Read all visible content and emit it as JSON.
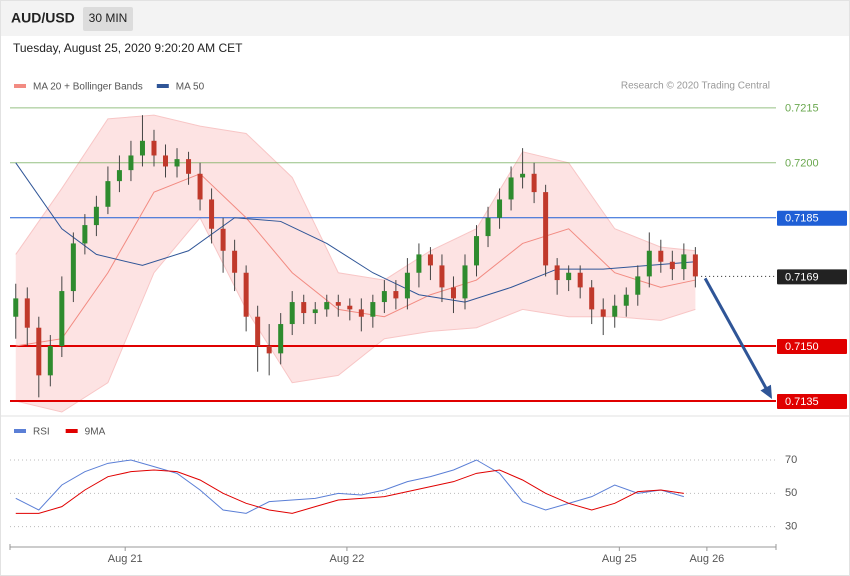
{
  "header": {
    "symbol": "AUD/USD",
    "timeframe": "30 MIN",
    "timestamp": "Tuesday, August 25, 2020 9:20:20 AM CET"
  },
  "chart_data": [
    {
      "type": "candlestick",
      "source": "Research © 2020 Trading Central",
      "up_color": "#2e8b2e",
      "down_color": "#c0392b",
      "xlim": [
        -0.5,
        66
      ],
      "ylim": [
        0.7132,
        0.72185
      ],
      "open": [
        0.7158,
        0.7163,
        0.7155,
        0.7142,
        0.715,
        0.7165,
        0.7178,
        0.7183,
        0.7188,
        0.7195,
        0.7198,
        0.7202,
        0.7206,
        0.7202,
        0.7199,
        0.7201,
        0.7197,
        0.719,
        0.7182,
        0.7176,
        0.717,
        0.7158,
        0.715,
        0.7148,
        0.7156,
        0.7162,
        0.7159,
        0.716,
        0.7162,
        0.7161,
        0.716,
        0.7158,
        0.7162,
        0.7165,
        0.7163,
        0.717,
        0.7175,
        0.7172,
        0.7166,
        0.7163,
        0.7172,
        0.718,
        0.7185,
        0.719,
        0.7196,
        0.7197,
        0.7192,
        0.7172,
        0.7168,
        0.717,
        0.7166,
        0.716,
        0.7158,
        0.7161,
        0.7164,
        0.7169,
        0.7176,
        0.7173,
        0.7171,
        0.7175
      ],
      "high": [
        0.7167,
        0.7166,
        0.7158,
        0.7153,
        0.7169,
        0.7181,
        0.7186,
        0.7191,
        0.7199,
        0.7202,
        0.7206,
        0.7213,
        0.7209,
        0.7205,
        0.7204,
        0.7203,
        0.72,
        0.7193,
        0.7185,
        0.7179,
        0.7172,
        0.7161,
        0.7156,
        0.7159,
        0.7165,
        0.7164,
        0.7162,
        0.7164,
        0.7164,
        0.7163,
        0.7163,
        0.7164,
        0.7168,
        0.7168,
        0.7174,
        0.7178,
        0.7177,
        0.7175,
        0.7169,
        0.7175,
        0.7183,
        0.7188,
        0.7193,
        0.7199,
        0.7204,
        0.72,
        0.7194,
        0.7174,
        0.7172,
        0.7172,
        0.7168,
        0.7163,
        0.7164,
        0.7166,
        0.7172,
        0.7181,
        0.7179,
        0.7176,
        0.7178,
        0.7177
      ],
      "low": [
        0.7152,
        0.715,
        0.7136,
        0.7139,
        0.7147,
        0.7162,
        0.7175,
        0.718,
        0.7186,
        0.7192,
        0.7195,
        0.7199,
        0.7199,
        0.7196,
        0.7196,
        0.7194,
        0.7187,
        0.7178,
        0.717,
        0.7165,
        0.7154,
        0.7143,
        0.7142,
        0.7145,
        0.7153,
        0.7156,
        0.7156,
        0.7158,
        0.7158,
        0.7157,
        0.7154,
        0.7155,
        0.7159,
        0.716,
        0.716,
        0.7166,
        0.7168,
        0.7162,
        0.7159,
        0.716,
        0.7169,
        0.7177,
        0.7182,
        0.7187,
        0.7193,
        0.7189,
        0.7169,
        0.7164,
        0.7165,
        0.7163,
        0.7156,
        0.7153,
        0.7155,
        0.7158,
        0.7161,
        0.7166,
        0.717,
        0.7168,
        0.7168,
        0.7166
      ],
      "close": [
        0.7163,
        0.7155,
        0.7142,
        0.715,
        0.7165,
        0.7178,
        0.7183,
        0.7188,
        0.7195,
        0.7198,
        0.7202,
        0.7206,
        0.7202,
        0.7199,
        0.7201,
        0.7197,
        0.719,
        0.7182,
        0.7176,
        0.717,
        0.7158,
        0.715,
        0.7148,
        0.7156,
        0.7162,
        0.7159,
        0.716,
        0.7162,
        0.7161,
        0.716,
        0.7158,
        0.7162,
        0.7165,
        0.7163,
        0.717,
        0.7175,
        0.7172,
        0.7166,
        0.7163,
        0.7172,
        0.718,
        0.7185,
        0.719,
        0.7196,
        0.7197,
        0.7192,
        0.7172,
        0.7168,
        0.717,
        0.7166,
        0.716,
        0.7158,
        0.7161,
        0.7164,
        0.7169,
        0.7176,
        0.7173,
        0.7171,
        0.7175,
        0.7169
      ],
      "bands": {
        "x": [
          0,
          4,
          8,
          12,
          16,
          20,
          24,
          28,
          32,
          36,
          40,
          44,
          48,
          52,
          56,
          59
        ],
        "upper": [
          0.7175,
          0.7193,
          0.7212,
          0.7213,
          0.721,
          0.7208,
          0.7196,
          0.717,
          0.7168,
          0.7176,
          0.7182,
          0.7203,
          0.72,
          0.7182,
          0.7177,
          0.7176
        ],
        "lower": [
          0.7135,
          0.7132,
          0.714,
          0.717,
          0.7185,
          0.716,
          0.714,
          0.7142,
          0.7152,
          0.7154,
          0.7155,
          0.716,
          0.7158,
          0.7158,
          0.7157,
          0.716
        ],
        "fill": "#fde3e3"
      },
      "series": [
        {
          "name": "MA 20 + Bollinger Bands",
          "color": "#f28b82",
          "x": [
            0,
            4,
            8,
            12,
            16,
            20,
            24,
            28,
            32,
            36,
            40,
            44,
            48,
            52,
            56,
            59
          ],
          "values": [
            0.715,
            0.7152,
            0.717,
            0.7192,
            0.7197,
            0.7185,
            0.717,
            0.716,
            0.7158,
            0.7164,
            0.7168,
            0.7178,
            0.7182,
            0.717,
            0.7166,
            0.7168
          ]
        },
        {
          "name": "MA 50",
          "color": "#2f5597",
          "x": [
            0,
            4,
            7,
            11,
            15,
            19,
            23,
            27,
            31,
            35,
            39,
            43,
            47,
            51,
            55,
            59
          ],
          "values": [
            0.72,
            0.7182,
            0.7175,
            0.7172,
            0.7176,
            0.7185,
            0.7184,
            0.7178,
            0.717,
            0.7164,
            0.7162,
            0.7166,
            0.7171,
            0.7171,
            0.7172,
            0.7173
          ]
        }
      ],
      "levels": [
        {
          "value": 0.7215,
          "label": "0.7215",
          "color": "#6aa84f",
          "line": "thin",
          "box": false
        },
        {
          "value": 0.72,
          "label": "0.7200",
          "color": "#6aa84f",
          "line": "thin",
          "box": false
        },
        {
          "value": 0.7185,
          "label": "0.7185",
          "color": "#1f5fd6",
          "line": "thin",
          "box": true
        },
        {
          "value": 0.7169,
          "label": "0.7169",
          "color": "#222222",
          "line": "dotted",
          "box": true
        },
        {
          "value": 0.715,
          "label": "0.7150",
          "color": "#e00000",
          "line": "thick",
          "box": true
        },
        {
          "value": 0.7135,
          "label": "0.7135",
          "color": "#e00000",
          "line": "thick",
          "box": true
        }
      ],
      "arrow_color": "#2f5597"
    },
    {
      "type": "line",
      "xlim": [
        -0.5,
        66
      ],
      "ylim": [
        19,
        88
      ],
      "yticks": [
        30,
        50,
        70
      ],
      "grid": true,
      "xticks": [
        {
          "value": 9.5,
          "label": "Aug 21"
        },
        {
          "value": 28.75,
          "label": "Aug 22"
        },
        {
          "value": 52.4,
          "label": "Aug 25"
        },
        {
          "value": 60,
          "label": "Aug 26"
        }
      ],
      "series": [
        {
          "name": "RSI",
          "color": "#5b7fd6",
          "x": [
            0,
            2,
            4,
            6,
            8,
            10,
            12,
            14,
            16,
            18,
            20,
            22,
            24,
            26,
            28,
            30,
            32,
            34,
            36,
            38,
            40,
            42,
            44,
            46,
            48,
            50,
            52,
            54,
            56,
            58
          ],
          "values": [
            47,
            40,
            55,
            63,
            68,
            70,
            66,
            62,
            52,
            40,
            38,
            45,
            46,
            47,
            50,
            49,
            52,
            57,
            60,
            64,
            70,
            62,
            45,
            40,
            44,
            48,
            55,
            50,
            52,
            48
          ]
        },
        {
          "name": "9MA",
          "color": "#e00000",
          "x": [
            0,
            2,
            4,
            6,
            8,
            10,
            12,
            14,
            16,
            18,
            20,
            22,
            24,
            26,
            28,
            30,
            32,
            34,
            36,
            38,
            40,
            42,
            44,
            46,
            48,
            50,
            52,
            54,
            56,
            58
          ],
          "values": [
            38,
            38,
            42,
            52,
            60,
            63,
            64,
            63,
            58,
            50,
            44,
            40,
            38,
            42,
            46,
            47,
            48,
            51,
            54,
            57,
            62,
            64,
            58,
            50,
            44,
            40,
            44,
            51,
            52,
            50
          ]
        }
      ]
    }
  ]
}
